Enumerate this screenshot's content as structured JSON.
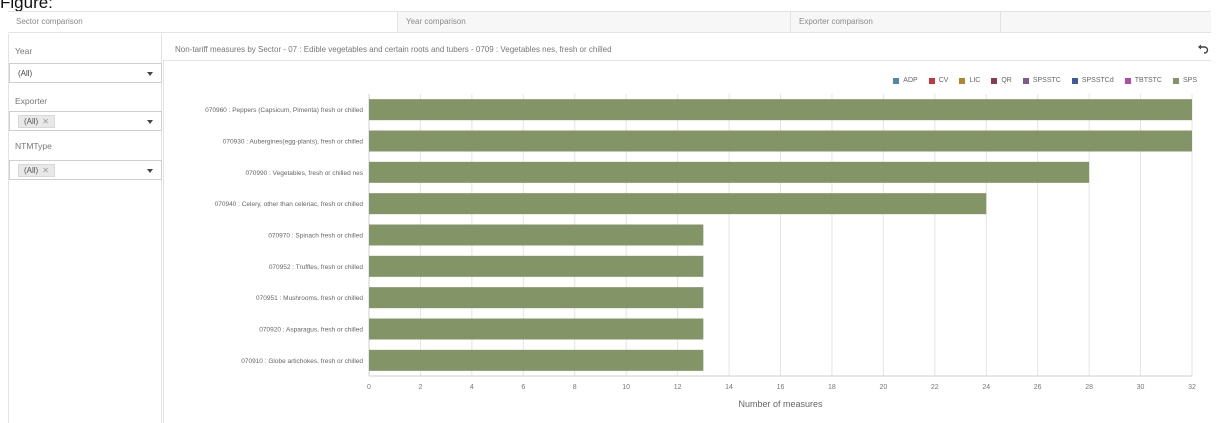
{
  "page": {
    "heading": "Figure:"
  },
  "tabs": [
    {
      "label": "Sector comparison",
      "active": true
    },
    {
      "label": "Year comparison",
      "active": false
    },
    {
      "label": "Exporter comparison",
      "active": false
    },
    {
      "label": "",
      "active": false
    }
  ],
  "filters": {
    "year": {
      "label": "Year",
      "value": "(All)"
    },
    "exporter": {
      "label": "Exporter",
      "value": "(All)",
      "remove_glyph": "✕"
    },
    "ntm_type": {
      "label": "NTMType",
      "value": "(All)",
      "remove_glyph": "✕"
    }
  },
  "chart_header": {
    "title": "Non-tariff measures by Sector - 07 : Edible vegetables and certain roots and tubers - 0709 : Vegetables nes, fresh or chilled",
    "undo_icon": "undo-icon"
  },
  "colors": {
    "bar": "#839466",
    "grid": "#e4e4e4",
    "axis": "#cfcfcf"
  },
  "chart_data": {
    "type": "bar",
    "orientation": "horizontal",
    "title": "Non-tariff measures by Sector - 07 : Edible vegetables and certain roots and tubers - 0709 : Vegetables nes, fresh or chilled",
    "xlabel": "Number of measures",
    "ylabel": "",
    "xlim": [
      0,
      32
    ],
    "xticks": [
      0,
      2,
      4,
      6,
      8,
      10,
      12,
      14,
      16,
      18,
      20,
      22,
      24,
      26,
      28,
      30,
      32
    ],
    "grid": true,
    "legend_position": "top-right",
    "legend": [
      {
        "name": "ADP",
        "color": "#4e8aa8"
      },
      {
        "name": "CV",
        "color": "#c8373f"
      },
      {
        "name": "LIC",
        "color": "#b3862e"
      },
      {
        "name": "QR",
        "color": "#8a3a55"
      },
      {
        "name": "SPSSTC",
        "color": "#7d5a94"
      },
      {
        "name": "SPSSTCd",
        "color": "#3f5b98"
      },
      {
        "name": "TBTSTC",
        "color": "#b44aa8"
      },
      {
        "name": "SPS",
        "color": "#839466"
      }
    ],
    "categories": [
      "070960 : Peppers (Capsicum, Pimenta) fresh or chilled",
      "070930 : Aubergines(egg-plants), fresh or chilled",
      "070990 : Vegetables, fresh or chilled nes",
      "070940 : Celery, other than celeriac, fresh or chilled",
      "070970 : Spinach fresh or chilled",
      "070952 : Truffles, fresh or chilled",
      "070951 : Mushrooms, fresh or chilled",
      "070920 : Asparagus, fresh or chilled",
      "070910 : Globe artichokes, fresh or chilled"
    ],
    "series": [
      {
        "name": "SPS",
        "values": [
          32,
          32,
          28,
          24,
          13,
          13,
          13,
          13,
          13
        ]
      }
    ]
  }
}
